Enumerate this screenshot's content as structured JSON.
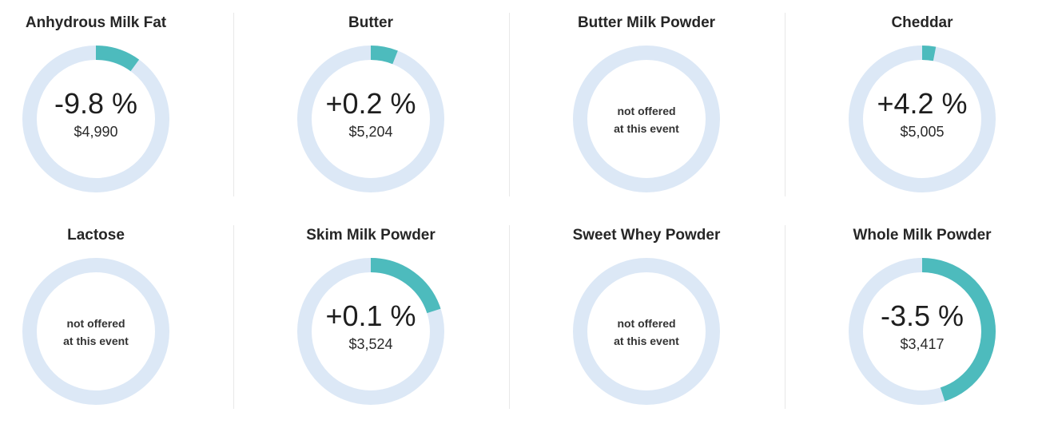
{
  "chart_data": [
    {
      "type": "pie",
      "title": "Anhydrous Milk Fat",
      "change": "-9.8 %",
      "price": "$4,990",
      "fraction": 0.1,
      "offered": true,
      "not_offered_line1": "",
      "not_offered_line2": ""
    },
    {
      "type": "pie",
      "title": "Butter",
      "change": "+0.2 %",
      "price": "$5,204",
      "fraction": 0.06,
      "offered": true,
      "not_offered_line1": "",
      "not_offered_line2": ""
    },
    {
      "type": "pie",
      "title": "Butter Milk Powder",
      "change": "",
      "price": "",
      "fraction": 0,
      "offered": false,
      "not_offered_line1": "not offered",
      "not_offered_line2": "at this event"
    },
    {
      "type": "pie",
      "title": "Cheddar",
      "change": "+4.2 %",
      "price": "$5,005",
      "fraction": 0.03,
      "offered": true,
      "not_offered_line1": "",
      "not_offered_line2": ""
    },
    {
      "type": "pie",
      "title": "Lactose",
      "change": "",
      "price": "",
      "fraction": 0,
      "offered": false,
      "not_offered_line1": "not offered",
      "not_offered_line2": "at this event"
    },
    {
      "type": "pie",
      "title": "Skim Milk Powder",
      "change": "+0.1 %",
      "price": "$3,524",
      "fraction": 0.2,
      "offered": true,
      "not_offered_line1": "",
      "not_offered_line2": ""
    },
    {
      "type": "pie",
      "title": "Sweet Whey Powder",
      "change": "",
      "price": "",
      "fraction": 0,
      "offered": false,
      "not_offered_line1": "not offered",
      "not_offered_line2": "at this event"
    },
    {
      "type": "pie",
      "title": "Whole Milk Powder",
      "change": "-3.5 %",
      "price": "$3,417",
      "fraction": 0.45,
      "offered": true,
      "not_offered_line1": "",
      "not_offered_line2": ""
    }
  ],
  "colors": {
    "track": "#dce8f6",
    "fill": "#4dbbbd"
  }
}
